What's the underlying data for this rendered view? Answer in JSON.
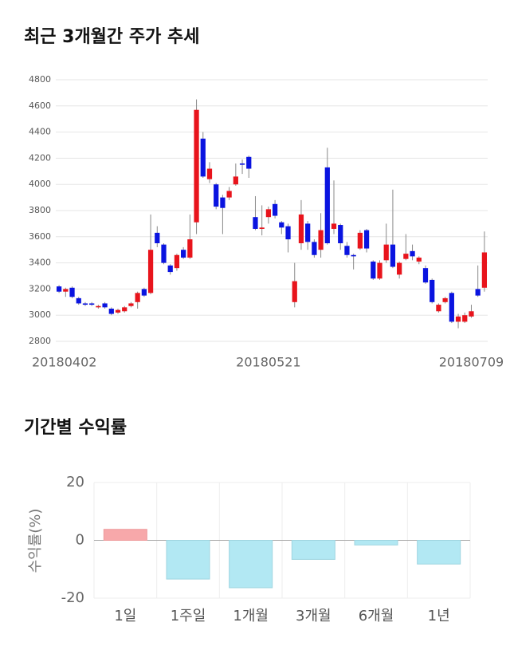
{
  "chart_data": [
    {
      "type": "candlestick",
      "title": "최근 3개월간 주가 추세",
      "categories": [
        "20180402",
        null,
        null,
        null,
        null,
        null,
        null,
        null,
        null,
        null,
        null,
        null,
        null,
        null,
        null,
        null,
        null,
        null,
        null,
        null,
        null,
        null,
        null,
        null,
        null,
        null,
        null,
        null,
        null,
        null,
        null,
        null,
        "20180521",
        null,
        null,
        null,
        null,
        null,
        null,
        null,
        null,
        null,
        null,
        null,
        null,
        null,
        null,
        null,
        null,
        null,
        null,
        null,
        null,
        null,
        null,
        null,
        null,
        null,
        null,
        null,
        null,
        null,
        null,
        "20180709",
        null,
        null
      ],
      "series": [
        {
          "up_color": "#e8141c",
          "down_color": "#0a14e0",
          "open": [
            3220,
            3180,
            3210,
            3130,
            3090,
            3090,
            3060,
            3090,
            3050,
            3020,
            3030,
            3070,
            3100,
            3200,
            3170,
            3630,
            3540,
            3380,
            3360,
            3500,
            3440,
            3710,
            4350,
            4040,
            4000,
            3900,
            3900,
            4000,
            4160,
            4210,
            3750,
            3660,
            3750,
            3850,
            3710,
            3680,
            3100,
            3550,
            3700,
            3560,
            3500,
            4130,
            3660,
            3690,
            3530,
            3460,
            3510,
            3650,
            3410,
            3280,
            3420,
            3540,
            3310,
            3430,
            3490,
            3410,
            3360,
            3270,
            3030,
            3100,
            3170,
            2950,
            2950,
            2990,
            3200,
            3210
          ],
          "high": [
            3230,
            3210,
            3220,
            3140,
            3100,
            3100,
            3080,
            3100,
            3060,
            3050,
            3070,
            3100,
            3180,
            3210,
            3770,
            3680,
            3550,
            3390,
            3470,
            3520,
            3770,
            4650,
            4400,
            4170,
            4010,
            3920,
            3980,
            4160,
            4190,
            4220,
            3910,
            3840,
            3830,
            3880,
            3720,
            3700,
            3400,
            3880,
            3720,
            3580,
            3780,
            4280,
            4030,
            3700,
            3560,
            3470,
            3650,
            3660,
            3420,
            3420,
            3700,
            3960,
            3410,
            3620,
            3540,
            3450,
            3380,
            3280,
            3090,
            3140,
            3180,
            3010,
            3020,
            3080,
            3380,
            3640
          ],
          "low": [
            3170,
            3140,
            3130,
            3080,
            3070,
            3070,
            3050,
            3050,
            3000,
            3010,
            3020,
            3060,
            3050,
            3140,
            3160,
            3520,
            3390,
            3310,
            3340,
            3430,
            3430,
            3620,
            4050,
            4010,
            3810,
            3620,
            3880,
            3990,
            4080,
            4050,
            3650,
            3610,
            3700,
            3740,
            3620,
            3480,
            3060,
            3500,
            3500,
            3440,
            3440,
            3540,
            3620,
            3500,
            3440,
            3350,
            3500,
            3480,
            3270,
            3270,
            3400,
            3360,
            3280,
            3420,
            3420,
            3390,
            3240,
            3090,
            3020,
            3090,
            2940,
            2900,
            2940,
            2980,
            3140,
            3180
          ],
          "close": [
            3180,
            3200,
            3140,
            3090,
            3080,
            3080,
            3070,
            3060,
            3010,
            3040,
            3060,
            3090,
            3170,
            3150,
            3500,
            3550,
            3400,
            3330,
            3460,
            3440,
            3580,
            4570,
            4060,
            4120,
            3830,
            3820,
            3950,
            4060,
            4150,
            4120,
            3660,
            3670,
            3810,
            3760,
            3670,
            3580,
            3260,
            3770,
            3560,
            3460,
            3650,
            3550,
            3700,
            3550,
            3460,
            3450,
            3630,
            3510,
            3280,
            3400,
            3540,
            3370,
            3400,
            3470,
            3450,
            3440,
            3250,
            3100,
            3080,
            3130,
            2950,
            2990,
            3000,
            3030,
            3150,
            3480
          ]
        }
      ],
      "ylim": [
        2800,
        4800
      ],
      "yticks": [
        2800,
        3000,
        3200,
        3400,
        3600,
        3800,
        4000,
        4200,
        4400,
        4600,
        4800
      ],
      "grid": true
    },
    {
      "type": "bar",
      "title": "기간별 수익률",
      "y_label": "수익률(%)",
      "categories": [
        "1일",
        "1주일",
        "1개월",
        "3개월",
        "6개월",
        "1년"
      ],
      "values": [
        3.8,
        -13.4,
        -16.4,
        -6.6,
        -1.6,
        -8.2
      ],
      "positive_color": "#f7a8aa",
      "negative_color": "#b2e8f3",
      "ylim": [
        -20,
        20
      ],
      "yticks": [
        -20,
        0,
        20
      ],
      "grid": true
    }
  ]
}
